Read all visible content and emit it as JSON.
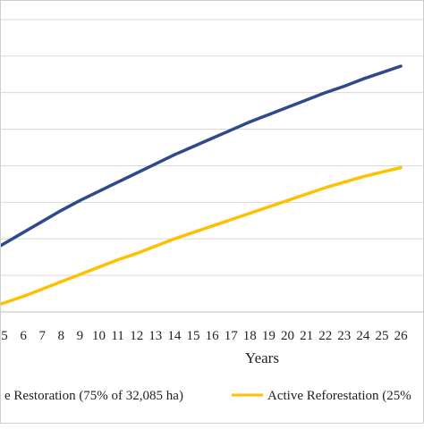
{
  "chart_data": {
    "type": "line",
    "x": [
      5,
      6,
      7,
      8,
      9,
      10,
      11,
      12,
      13,
      14,
      15,
      16,
      17,
      18,
      19,
      20,
      21,
      22,
      23,
      24,
      25,
      26
    ],
    "tick_labels": [
      "5",
      "6",
      "7",
      "8",
      "9",
      "10",
      "11",
      "12",
      "13",
      "14",
      "15",
      "16",
      "17",
      "18",
      "19",
      "20",
      "21",
      "22",
      "23",
      "24",
      "25",
      "26"
    ],
    "xlabel": "Years",
    "ylabel": "",
    "grid": true,
    "legend_position": "bottom",
    "series": [
      {
        "name": "e Restoration (75% of 32,085 ha)",
        "color": "#2e4a8a",
        "values": [
          37.5,
          43.5,
          49.5,
          55.5,
          61,
          66,
          71,
          76,
          81,
          86,
          90.5,
          95,
          99.5,
          104,
          108,
          112,
          116,
          120,
          123.5,
          127.5,
          131,
          134.5
        ]
      },
      {
        "name": "Active Reforestation (25%",
        "color": "#ffc000",
        "values": [
          5,
          8.5,
          12.5,
          16.5,
          20.5,
          24.5,
          28.5,
          32,
          36,
          40,
          43.5,
          47,
          50.5,
          54,
          57.5,
          61,
          64.5,
          68,
          71,
          74,
          76.5,
          79
        ]
      }
    ],
    "ylim": [
      0,
      180
    ]
  }
}
